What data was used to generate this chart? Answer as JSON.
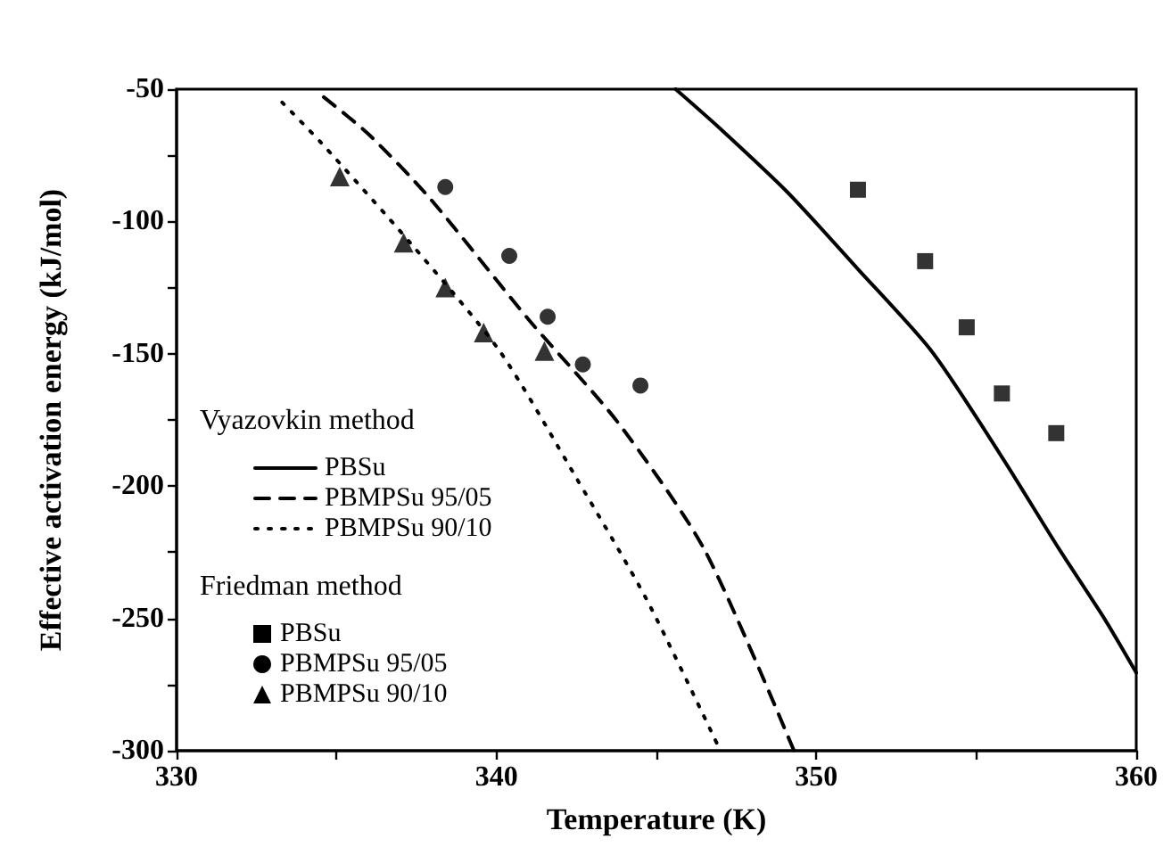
{
  "chart_data": {
    "type": "line",
    "xlabel": "Temperature (K)",
    "ylabel": "Effective activation energy (kJ/mol)",
    "annotations": [
      "Vyazovkin method",
      "Friedman method"
    ],
    "xlim": [
      330,
      360
    ],
    "xticks": [
      330,
      {
        "value": 335,
        "label": null
      },
      340,
      {
        "value": 345,
        "label": null
      },
      350,
      {
        "value": 355,
        "label": null
      },
      360
    ],
    "ylim": [
      -300,
      -50
    ],
    "yticks": [
      -300,
      {
        "value": -275,
        "label": null
      },
      -250,
      {
        "value": -225,
        "label": null
      },
      -200,
      {
        "value": -175,
        "label": null
      },
      -150,
      {
        "value": -125,
        "label": null
      },
      -100,
      {
        "value": -75,
        "label": null
      },
      -50
    ],
    "grid": false,
    "legend": "bottom left",
    "series": [
      {
        "name": "PBSu",
        "color": "#000000",
        "line_style": "solid",
        "marker": "none",
        "x": [
          345.6,
          347,
          349.1,
          351.3,
          353.6,
          355.8,
          357.6,
          359,
          360
        ],
        "values": [
          -50,
          -65,
          -89,
          -118,
          -149,
          -189,
          -224,
          -250,
          -270.5
        ]
      },
      {
        "name": "PBMPSu 95/05",
        "color": "#000000",
        "line_style": "dashed",
        "marker": "none",
        "x": [
          334.6,
          336,
          337.9,
          341,
          343.8,
          346.5,
          349.3
        ],
        "values": [
          -53,
          -67,
          -91,
          -137,
          -176,
          -224,
          -300
        ]
      },
      {
        "name": "PBMPSu 90/10",
        "color": "#000000",
        "line_style": "dotted",
        "marker": "none",
        "x": [
          333.3,
          334.5,
          337.3,
          340.1,
          342.5,
          344.7,
          347
        ],
        "values": [
          -55,
          -70,
          -108,
          -149,
          -197,
          -243,
          -300
        ]
      },
      {
        "name": "PBSu",
        "type": "scatter",
        "color": "#000000",
        "marker": "square",
        "x": [
          351.3,
          353.4,
          354.7,
          355.8,
          357.5
        ],
        "values": [
          -88,
          -115,
          -140,
          -165,
          -180
        ]
      },
      {
        "name": "PBMPSu 95/05",
        "type": "scatter",
        "color": "#000000",
        "marker": "circle",
        "x": [
          338.4,
          340.4,
          341.6,
          342.7,
          344.5
        ],
        "values": [
          -87,
          -113,
          -136,
          -154,
          -162
        ]
      },
      {
        "name": "PBMPSu 90/10",
        "type": "scatter",
        "color": "#000000",
        "marker": "triangle",
        "x": [
          335.1,
          337.1,
          338.4,
          339.6,
          341.5
        ],
        "values": [
          -83,
          -108,
          -125,
          -142,
          -149
        ]
      }
    ]
  }
}
